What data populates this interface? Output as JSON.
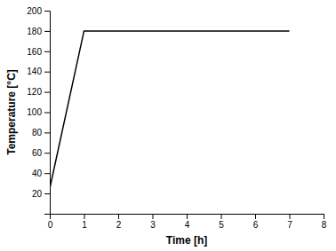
{
  "chart_data": {
    "type": "line",
    "x": [
      0,
      1,
      7
    ],
    "values": [
      25,
      180,
      180
    ],
    "color": "#000000",
    "xlabel": "Time [h]",
    "ylabel": "Temperature [°C]",
    "xlim": [
      0,
      8
    ],
    "ylim": [
      0,
      200
    ],
    "xticks": [
      0,
      1,
      2,
      3,
      4,
      5,
      6,
      7,
      8
    ],
    "yticks": [
      20,
      40,
      60,
      80,
      100,
      120,
      140,
      160,
      180,
      200
    ]
  }
}
